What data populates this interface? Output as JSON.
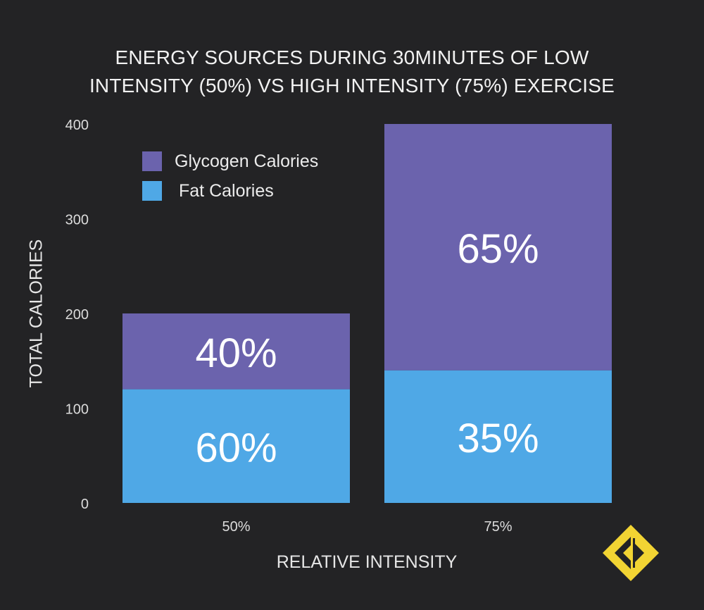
{
  "title_line1": "ENERGY SOURCES DURING 30MINUTES OF LOW",
  "title_line2": "INTENSITY (50%) VS HIGH INTENSITY (75%) EXERCISE",
  "colors": {
    "background": "#232325",
    "glycogen": "#6b63ad",
    "fat": "#4fa8e6",
    "logo": "#f2d433"
  },
  "logo_icon": "diamond-bracket-logo-icon",
  "chart_data": {
    "type": "bar",
    "stacked": true,
    "title": "ENERGY SOURCES DURING 30MINUTES OF LOW INTENSITY (50%) VS HIGH INTENSITY (75%) EXERCISE",
    "xlabel": "RELATIVE INTENSITY",
    "ylabel": "TOTAL CALORIES",
    "categories": [
      "50%",
      "75%"
    ],
    "ylim": [
      0,
      400
    ],
    "yticks": [
      "0",
      "100",
      "200",
      "300",
      "400"
    ],
    "grid": false,
    "legend_position": "top-left",
    "series": [
      {
        "name": "Fat Calories",
        "values": [
          120,
          140
        ],
        "labels": [
          "60%",
          "35%"
        ]
      },
      {
        "name": "Glycogen Calories",
        "values": [
          80,
          260
        ],
        "labels": [
          "40%",
          "65%"
        ]
      }
    ]
  }
}
